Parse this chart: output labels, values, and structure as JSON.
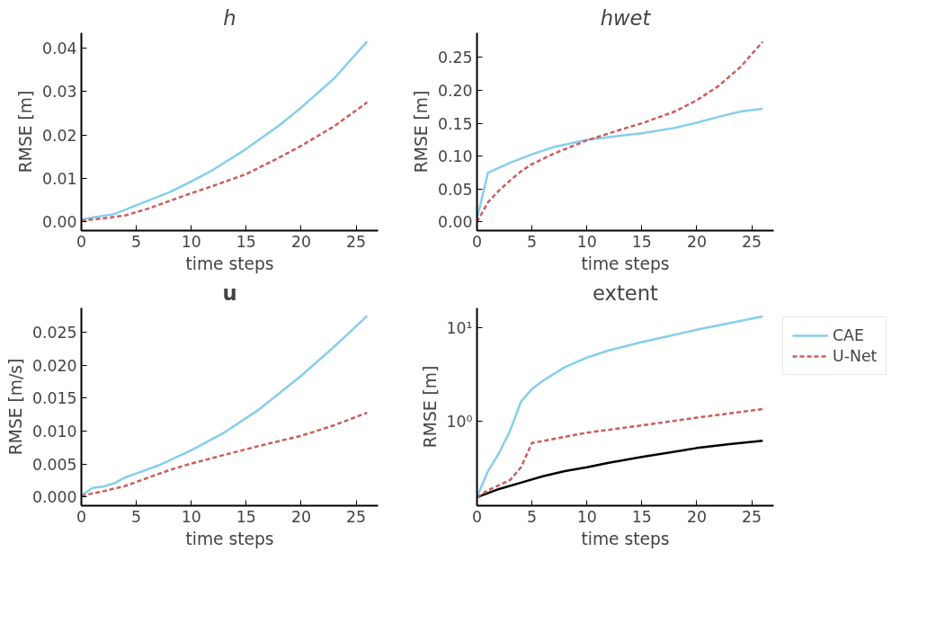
{
  "chart_data": [
    {
      "type": "line",
      "title": "h",
      "xlabel": "time steps",
      "ylabel": "RMSE [m]",
      "xlim": [
        0,
        27
      ],
      "xticks": [
        0,
        5,
        10,
        15,
        20,
        25
      ],
      "ylim": [
        -0.002,
        0.0435
      ],
      "yticks": [
        {
          "value": 0,
          "label": "0.00"
        },
        {
          "value": 0.01,
          "label": "0.01"
        },
        {
          "value": 0.02,
          "label": "0.02"
        },
        {
          "value": 0.03,
          "label": "0.03"
        },
        {
          "value": 0.04,
          "label": "0.04"
        }
      ],
      "grid": false,
      "legend": false,
      "series": [
        {
          "color": "#87ceeb",
          "line_style": "solid",
          "x": [
            0,
            1,
            3,
            5,
            8,
            10,
            12,
            15,
            18,
            20,
            23,
            26
          ],
          "values": [
            0.0005,
            0.001,
            0.0018,
            0.0038,
            0.0068,
            0.0093,
            0.012,
            0.0168,
            0.0222,
            0.0263,
            0.033,
            0.0415
          ]
        },
        {
          "color": "#cd5c5c",
          "line_style": "dashed",
          "x": [
            0,
            2,
            4,
            6,
            8,
            10,
            12,
            15,
            18,
            20,
            23,
            26
          ],
          "values": [
            0.0003,
            0.0008,
            0.0015,
            0.003,
            0.0048,
            0.0066,
            0.0083,
            0.011,
            0.0148,
            0.0175,
            0.022,
            0.0275
          ]
        }
      ]
    },
    {
      "type": "line",
      "title": "hwet",
      "xlabel": "time steps",
      "ylabel": "RMSE [m]",
      "xlim": [
        0,
        27
      ],
      "xticks": [
        0,
        5,
        10,
        15,
        20,
        25
      ],
      "ylim": [
        -0.013,
        0.2875
      ],
      "yticks": [
        {
          "value": 0,
          "label": "0.00"
        },
        {
          "value": 0.05,
          "label": "0.05"
        },
        {
          "value": 0.1,
          "label": "0.10"
        },
        {
          "value": 0.15,
          "label": "0.15"
        },
        {
          "value": 0.2,
          "label": "0.20"
        },
        {
          "value": 0.25,
          "label": "0.25"
        }
      ],
      "grid": false,
      "legend": false,
      "series": [
        {
          "color": "#87ceeb",
          "line_style": "solid",
          "x": [
            0,
            1,
            3,
            5,
            7,
            10,
            13,
            15,
            18,
            20,
            22,
            24,
            26
          ],
          "values": [
            0.005,
            0.075,
            0.09,
            0.103,
            0.114,
            0.125,
            0.131,
            0.135,
            0.143,
            0.151,
            0.16,
            0.168,
            0.172
          ]
        },
        {
          "color": "#cd5c5c",
          "line_style": "dashed",
          "x": [
            0,
            1,
            2,
            3,
            4,
            5,
            7,
            10,
            13,
            15,
            18,
            20,
            22,
            24,
            26
          ],
          "values": [
            0.0,
            0.03,
            0.048,
            0.063,
            0.077,
            0.088,
            0.104,
            0.124,
            0.14,
            0.15,
            0.168,
            0.185,
            0.207,
            0.236,
            0.274
          ]
        }
      ]
    },
    {
      "type": "line",
      "title": "u",
      "xlabel": "time steps",
      "ylabel": "RMSE [m/s]",
      "xlim": [
        0,
        27
      ],
      "xticks": [
        0,
        5,
        10,
        15,
        20,
        25
      ],
      "ylim": [
        -0.0013,
        0.0287
      ],
      "yticks": [
        {
          "value": 0,
          "label": "0.000"
        },
        {
          "value": 0.005,
          "label": "0.005"
        },
        {
          "value": 0.01,
          "label": "0.010"
        },
        {
          "value": 0.015,
          "label": "0.015"
        },
        {
          "value": 0.02,
          "label": "0.020"
        },
        {
          "value": 0.025,
          "label": "0.025"
        }
      ],
      "grid": false,
      "legend": false,
      "series": [
        {
          "color": "#87ceeb",
          "line_style": "solid",
          "x": [
            0,
            1,
            2,
            3,
            4,
            5,
            7,
            10,
            13,
            16,
            20,
            23,
            26
          ],
          "values": [
            0.0002,
            0.0014,
            0.0016,
            0.0021,
            0.003,
            0.0036,
            0.0048,
            0.0071,
            0.0098,
            0.0131,
            0.0184,
            0.0228,
            0.0275
          ]
        },
        {
          "color": "#cd5c5c",
          "line_style": "dashed",
          "x": [
            0,
            2,
            4,
            6,
            8,
            10,
            13,
            16,
            20,
            23,
            26
          ],
          "values": [
            0.0002,
            0.0009,
            0.0017,
            0.0029,
            0.0041,
            0.0051,
            0.0064,
            0.0077,
            0.0093,
            0.0109,
            0.0128
          ]
        }
      ]
    },
    {
      "type": "line",
      "title": "extent",
      "xlabel": "time steps",
      "ylabel": "RMSE [m]",
      "log": "y",
      "xlim": [
        0,
        27
      ],
      "xticks": [
        0,
        5,
        10,
        15,
        20,
        25
      ],
      "ylim": [
        0.126,
        16.4
      ],
      "yticks": [
        {
          "value": 1,
          "label": "10⁰"
        },
        {
          "value": 10,
          "label": "10¹"
        }
      ],
      "grid": false,
      "legend": "right",
      "series": [
        {
          "color": "#000000",
          "line_style": "solid",
          "x": [
            0,
            2,
            4,
            6,
            8,
            10,
            12,
            15,
            20,
            23,
            26
          ],
          "values": [
            0.155,
            0.19,
            0.222,
            0.26,
            0.295,
            0.324,
            0.363,
            0.418,
            0.521,
            0.573,
            0.622
          ]
        },
        {
          "name": "CAE",
          "color": "#87ceeb",
          "line_style": "solid",
          "x": [
            0,
            1,
            2,
            3,
            4,
            5,
            6,
            8,
            10,
            12,
            15,
            20,
            26
          ],
          "values": [
            0.157,
            0.295,
            0.46,
            0.79,
            1.63,
            2.23,
            2.73,
            3.82,
            4.83,
            5.77,
            7.06,
            9.57,
            13.3
          ]
        },
        {
          "name": "U-Net",
          "color": "#cd5c5c",
          "line_style": "dashed",
          "x": [
            0,
            1,
            3,
            4,
            5,
            10,
            15,
            20,
            26
          ],
          "values": [
            0.155,
            0.184,
            0.236,
            0.324,
            0.59,
            0.76,
            0.91,
            1.1,
            1.36
          ]
        }
      ]
    }
  ]
}
